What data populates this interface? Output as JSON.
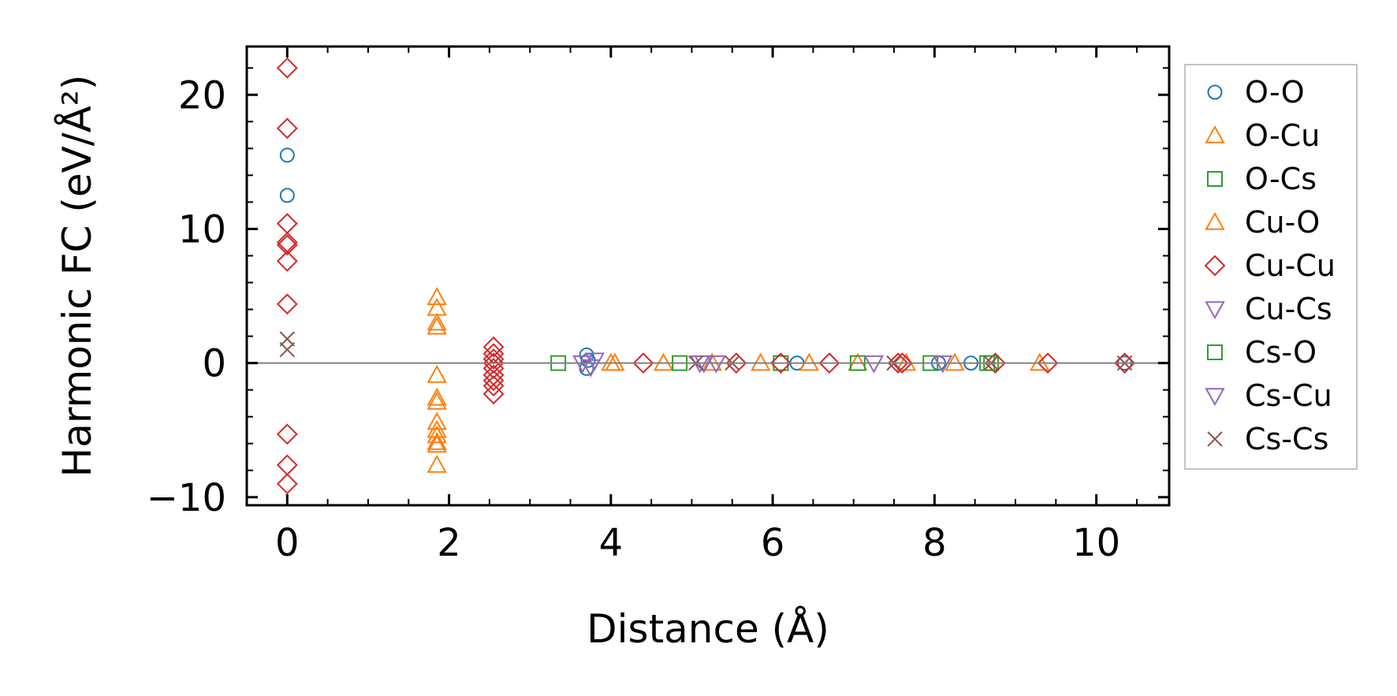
{
  "chart_data": {
    "type": "scatter",
    "xlabel": "Distance (Å)",
    "ylabel": "Harmonic FC (eV/Å²)",
    "xlim": [
      -0.5,
      10.9
    ],
    "ylim": [
      -10.6,
      23.6
    ],
    "xticks": [
      0,
      2,
      4,
      6,
      8,
      10
    ],
    "xtick_labels": [
      "0",
      "2",
      "4",
      "6",
      "8",
      "10"
    ],
    "yticks": [
      -10,
      0,
      10,
      20
    ],
    "ytick_labels": [
      "−10",
      "0",
      "10",
      "20"
    ],
    "grid": false,
    "legend_position": "outside-right",
    "zero_line": 0,
    "series": [
      {
        "name": "O-O",
        "marker": "circle",
        "color": "#1f77b4",
        "x": [
          0,
          0,
          3.7,
          3.7,
          3.72,
          6.3,
          8.05,
          8.45,
          10.35
        ],
        "y": [
          15.5,
          12.5,
          0.6,
          -0.4,
          0.2,
          0,
          0,
          0,
          0
        ]
      },
      {
        "name": "O-Cu",
        "marker": "triangle-up",
        "color": "#ff7f0e",
        "x": [
          1.85,
          1.85,
          1.85,
          1.85,
          1.85,
          1.85,
          1.85,
          1.85,
          1.85,
          4.0,
          4.65,
          5.25,
          5.85,
          6.45,
          7.05,
          7.65,
          8.25,
          9.3
        ],
        "y": [
          4.9,
          4.1,
          3.0,
          2.7,
          -0.9,
          -2.6,
          -2.9,
          -4.4,
          -7.6,
          0,
          0,
          0,
          0,
          0,
          0,
          0,
          0,
          0
        ]
      },
      {
        "name": "O-Cs",
        "marker": "square",
        "color": "#2ca02c",
        "x": [
          3.35,
          4.85,
          6.1,
          7.05,
          7.95,
          8.7
        ],
        "y": [
          0,
          0,
          0,
          0,
          0,
          0
        ]
      },
      {
        "name": "Cu-O",
        "marker": "triangle-up",
        "color": "#ff7f0e",
        "x": [
          1.85,
          1.85,
          1.85,
          1.85,
          4.05
        ],
        "y": [
          -5.0,
          -5.4,
          -5.9,
          -6.1,
          0
        ]
      },
      {
        "name": "Cu-Cu",
        "marker": "diamond",
        "color": "#d62728",
        "x": [
          0,
          0,
          0,
          0,
          0,
          0,
          0,
          0,
          0,
          0,
          2.55,
          2.55,
          2.55,
          2.55,
          2.55,
          2.55,
          2.55,
          2.55,
          2.55,
          4.4,
          5.55,
          6.1,
          6.7,
          7.55,
          7.6,
          8.75,
          9.4,
          10.35
        ],
        "y": [
          22.0,
          17.5,
          10.4,
          9.0,
          8.8,
          7.6,
          4.4,
          -5.3,
          -7.6,
          -9.0,
          1.2,
          0.7,
          0.3,
          0,
          -0.4,
          -0.9,
          -1.3,
          -1.7,
          -2.3,
          0,
          0,
          0,
          0,
          0,
          0,
          0,
          0,
          0
        ]
      },
      {
        "name": "Cu-Cs",
        "marker": "triangle-down",
        "color": "#9467bd",
        "x": [
          3.75,
          3.8,
          5.15,
          5.3,
          7.25,
          8.1
        ],
        "y": [
          -0.3,
          0.2,
          0,
          0,
          0,
          0
        ]
      },
      {
        "name": "Cs-O",
        "marker": "square",
        "color": "#2ca02c",
        "x": [
          8.65
        ],
        "y": [
          0
        ]
      },
      {
        "name": "Cs-Cu",
        "marker": "triangle-down",
        "color": "#9467bd",
        "x": [
          3.65,
          5.1
        ],
        "y": [
          0,
          0
        ]
      },
      {
        "name": "Cs-Cs",
        "marker": "x",
        "color": "#8c564b",
        "x": [
          0,
          0,
          5.05,
          5.5,
          7.5,
          8.7,
          10.35
        ],
        "y": [
          1.8,
          1.0,
          0,
          0,
          0,
          0,
          0
        ]
      }
    ]
  }
}
